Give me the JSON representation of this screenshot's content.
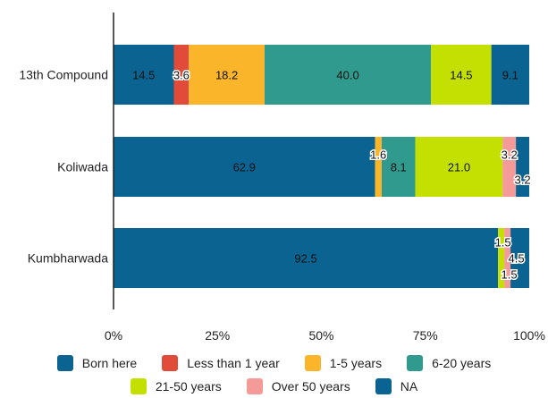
{
  "chart_data": {
    "type": "bar",
    "orientation": "horizontal",
    "stacked": "percent",
    "categories": [
      "13th Compound",
      "Koliwada",
      "Kumbharwada"
    ],
    "series": [
      {
        "name": "Born here",
        "color": "#0a6391",
        "values": [
          14.5,
          62.9,
          92.5
        ],
        "labels": [
          "14.5",
          "62.9",
          "92.5"
        ]
      },
      {
        "name": "Less than 1 year",
        "color": "#e04b3a",
        "values": [
          3.6,
          0,
          0
        ],
        "labels": [
          "3.6",
          "",
          ""
        ]
      },
      {
        "name": "1-5 years",
        "color": "#fbb52a",
        "values": [
          18.2,
          1.6,
          0
        ],
        "labels": [
          "18.2",
          "1.6",
          ""
        ]
      },
      {
        "name": "6-20 years",
        "color": "#2f9a8d",
        "values": [
          40.0,
          8.1,
          0
        ],
        "labels": [
          "40.0",
          "8.1",
          ""
        ]
      },
      {
        "name": "21-50 years",
        "color": "#c3e002",
        "values": [
          14.5,
          21.0,
          1.5
        ],
        "labels": [
          "14.5",
          "21.0",
          "1.5"
        ]
      },
      {
        "name": "Over 50 years",
        "color": "#f49a98",
        "values": [
          0,
          3.2,
          1.5
        ],
        "labels": [
          "",
          "3.2",
          "1.5"
        ]
      },
      {
        "name": "NA",
        "color": "#0a6391",
        "values": [
          9.1,
          3.2,
          4.5
        ],
        "labels": [
          "9.1",
          "3.2",
          "4.5"
        ]
      }
    ],
    "xaxis": {
      "ticks": [
        "0%",
        "25%",
        "50%",
        "75%",
        "100%"
      ],
      "range": [
        0,
        100
      ]
    },
    "grid": false,
    "legend_position": "bottom"
  }
}
